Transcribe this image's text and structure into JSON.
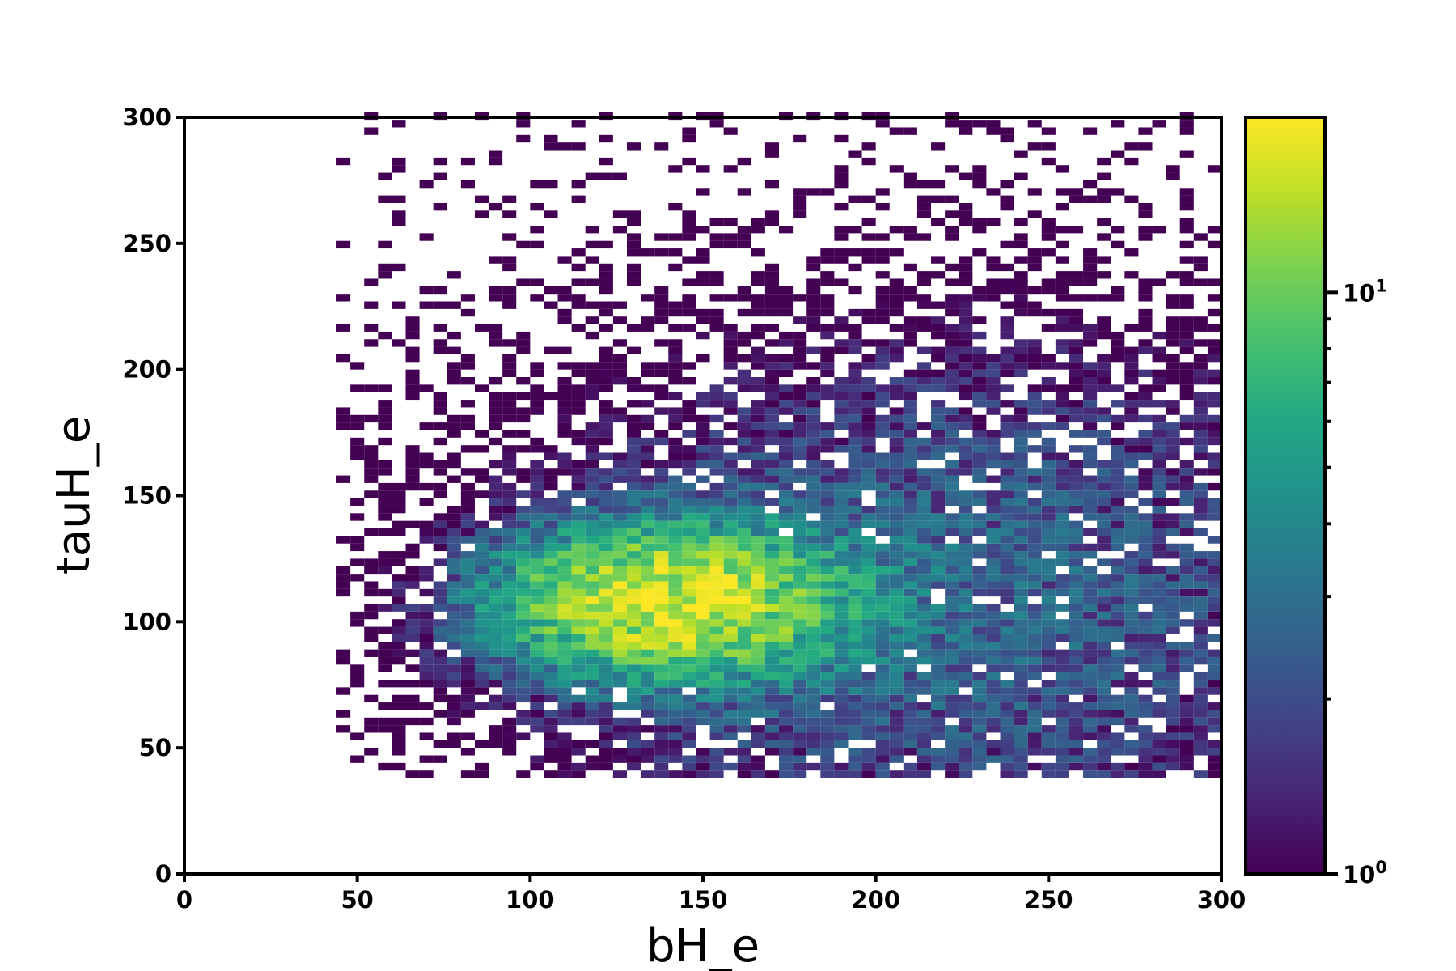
{
  "chart_data": {
    "type": "heatmap",
    "title": "",
    "xlabel": "bH_e",
    "ylabel": "tauH_e",
    "xlim": [
      0,
      300
    ],
    "ylim": [
      0,
      300
    ],
    "xticks": [
      "0",
      "50",
      "100",
      "150",
      "200",
      "250",
      "300"
    ],
    "yticks": [
      "0",
      "50",
      "100",
      "150",
      "200",
      "250",
      "300"
    ],
    "xtick_values": [
      0,
      50,
      100,
      150,
      200,
      250,
      300
    ],
    "ytick_values": [
      0,
      50,
      100,
      150,
      200,
      250,
      300
    ],
    "bin_width_x": 4,
    "bin_height_y": 3,
    "colormap": "viridis",
    "color_scale": "log",
    "colorbar": {
      "range": [
        1,
        20
      ],
      "ticks": [
        {
          "value": 1,
          "base": "10",
          "exp": "0"
        },
        {
          "value": 10,
          "base": "10",
          "exp": "1"
        }
      ],
      "minor_ticks": [
        2,
        3,
        4,
        5,
        6,
        7,
        8,
        9
      ]
    },
    "density_model": {
      "peak_count": 17,
      "peak_center": [
        140,
        108
      ],
      "core_spread": [
        30,
        18
      ],
      "broad_spread": [
        90,
        75
      ],
      "broad_count": 2.6,
      "broad_x_center": 220,
      "x_support": [
        44,
        300
      ],
      "y_support": [
        38,
        300
      ]
    },
    "grid": false,
    "legend": "none"
  }
}
